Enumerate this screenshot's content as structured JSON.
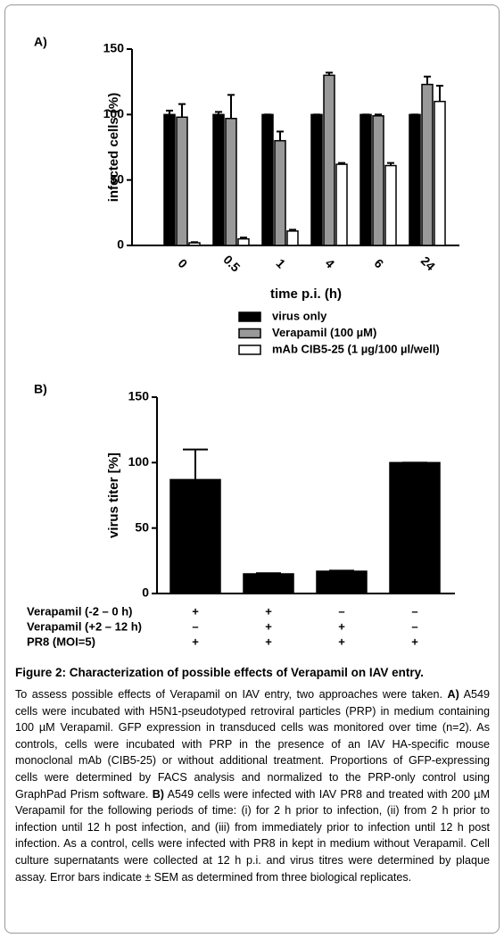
{
  "chart_data": [
    {
      "type": "bar",
      "panel": "A)",
      "y_label": "infected cells (%)",
      "x_label": "time p.i. (h)",
      "categories": [
        "0",
        "0.5",
        "1",
        "4",
        "6",
        "24"
      ],
      "series": [
        {
          "name": "virus only",
          "color": "#000000",
          "values": [
            100,
            100,
            100,
            100,
            100,
            100
          ],
          "errors": [
            3,
            2,
            0,
            0,
            0,
            0
          ]
        },
        {
          "name": "Verapamil (100 µM)",
          "color": "#999999",
          "values": [
            98,
            97,
            80,
            130,
            99,
            123
          ],
          "errors": [
            10,
            18,
            7,
            2,
            1,
            6
          ]
        },
        {
          "name": "mAb CIB5-25 (1 µg/100 µl/well)",
          "color": "#ffffff",
          "values": [
            2,
            5,
            11,
            62,
            61,
            110
          ],
          "errors": [
            0.5,
            1,
            1,
            1,
            2,
            12
          ]
        }
      ],
      "ylim": [
        0,
        150
      ],
      "yticks": [
        0,
        50,
        100,
        150
      ]
    },
    {
      "type": "bar",
      "panel": "B)",
      "y_label": "virus titer [%]",
      "values": [
        87,
        15,
        17,
        100
      ],
      "errors": [
        23,
        0.5,
        0.5,
        0
      ],
      "color": "#000000",
      "treatment_table": [
        {
          "label": "Verapamil (-2 – 0 h)",
          "signs": [
            "+",
            "+",
            "–",
            "–"
          ]
        },
        {
          "label": "Verapamil (+2 – 12 h)",
          "signs": [
            "–",
            "+",
            "+",
            "–"
          ]
        },
        {
          "label": "PR8 (MOI=5)",
          "signs": [
            "+",
            "+",
            "+",
            "+"
          ]
        }
      ],
      "ylim": [
        0,
        150
      ],
      "yticks": [
        0,
        50,
        100,
        150
      ]
    }
  ],
  "caption": {
    "title": "Figure 2: Characterization of possible effects of Verapamil on IAV entry.",
    "body": [
      "To assess possible effects of Verapamil on IAV entry, two approaches were taken.",
      "A)",
      "A549 cells were incubated with H5N1-pseudotyped retroviral particles (PRP) in medium containing 100 µM Verapamil. GFP expression in transduced cells was monitored over time (n=2). As controls, cells were incubated with PRP in the presence of an IAV HA-specific mouse monoclonal mAb (CIB5-25) or without additional treatment. Proportions of GFP-expressing cells were determined by FACS analysis and normalized to the PRP-only control using GraphPad Prism software.",
      "B)",
      "A549 cells were infected with IAV PR8 and treated with 200 µM Verapamil for the following periods of time: (i) for 2 h prior to infection, (ii) from 2 h prior to infection until 12 h post infection, and (iii) from immediately prior to infection until 12 h post infection. As a control, cells were infected with PR8 in kept in medium without Verapamil. Cell culture supernatants were collected at 12 h p.i. and virus titres were determined by plaque assay. Error bars indicate ± SEM as determined from three biological replicates."
    ]
  }
}
